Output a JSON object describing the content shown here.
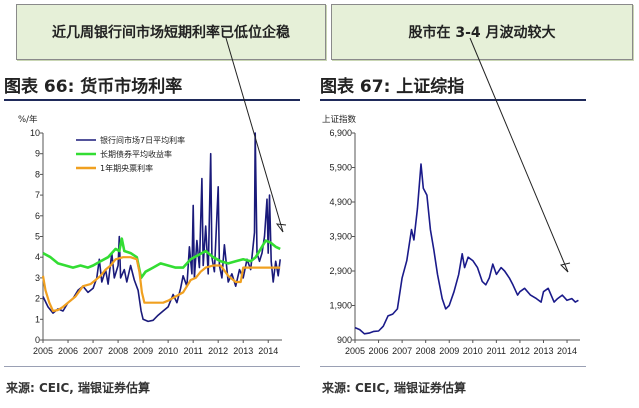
{
  "callouts": {
    "left": "近几周银行间市场短期利率已低位企稳",
    "right": "股市在 3-4 月波动较大"
  },
  "figures": {
    "left_title": "图表 66: 货币市场利率",
    "right_title": "图表 67: 上证综指",
    "left_source": "来源: CEIC, 瑞银证券估算",
    "right_source": "来源: CEIC, 瑞银证券估算"
  },
  "colors": {
    "series_7day": "#1a1a7a",
    "series_bond": "#33dd33",
    "series_bill": "#f0a020",
    "index_line": "#1a1a8a",
    "callout_bg": "#e6f0d8"
  },
  "chart_data": [
    {
      "type": "line",
      "unit_label": "%/年",
      "xlim": [
        2005,
        2014.55
      ],
      "ylim": [
        0,
        10
      ],
      "x_ticks": [
        "2005",
        "2006",
        "2007",
        "2008",
        "2009",
        "2010",
        "2011",
        "2012",
        "2013",
        "2014"
      ],
      "y_ticks": [
        0,
        1,
        2,
        3,
        4,
        5,
        6,
        7,
        8,
        9,
        10
      ],
      "legend_position": "top-right",
      "series": [
        {
          "name": "银行间市场7日平均利率",
          "color": "#1a1a7a",
          "points": [
            [
              2005.0,
              2.1
            ],
            [
              2005.2,
              1.6
            ],
            [
              2005.4,
              1.3
            ],
            [
              2005.6,
              1.5
            ],
            [
              2005.8,
              1.4
            ],
            [
              2006.0,
              1.8
            ],
            [
              2006.2,
              2.0
            ],
            [
              2006.4,
              2.4
            ],
            [
              2006.6,
              2.6
            ],
            [
              2006.8,
              2.3
            ],
            [
              2007.0,
              2.5
            ],
            [
              2007.15,
              3.0
            ],
            [
              2007.25,
              3.9
            ],
            [
              2007.35,
              2.8
            ],
            [
              2007.5,
              3.4
            ],
            [
              2007.6,
              2.7
            ],
            [
              2007.75,
              4.2
            ],
            [
              2007.85,
              3.0
            ],
            [
              2008.0,
              3.6
            ],
            [
              2008.05,
              5.0
            ],
            [
              2008.1,
              3.0
            ],
            [
              2008.25,
              3.4
            ],
            [
              2008.35,
              2.8
            ],
            [
              2008.5,
              3.6
            ],
            [
              2008.65,
              2.9
            ],
            [
              2008.8,
              2.4
            ],
            [
              2008.92,
              1.4
            ],
            [
              2009.0,
              1.0
            ],
            [
              2009.2,
              0.9
            ],
            [
              2009.4,
              0.95
            ],
            [
              2009.6,
              1.2
            ],
            [
              2009.8,
              1.4
            ],
            [
              2010.0,
              1.6
            ],
            [
              2010.2,
              2.2
            ],
            [
              2010.35,
              1.8
            ],
            [
              2010.5,
              2.5
            ],
            [
              2010.6,
              3.1
            ],
            [
              2010.75,
              2.6
            ],
            [
              2010.85,
              4.5
            ],
            [
              2010.95,
              3.2
            ],
            [
              2011.0,
              6.5
            ],
            [
              2011.05,
              3.0
            ],
            [
              2011.15,
              4.8
            ],
            [
              2011.25,
              3.5
            ],
            [
              2011.35,
              7.8
            ],
            [
              2011.4,
              3.6
            ],
            [
              2011.5,
              5.5
            ],
            [
              2011.6,
              3.2
            ],
            [
              2011.7,
              9.0
            ],
            [
              2011.75,
              4.0
            ],
            [
              2011.85,
              3.3
            ],
            [
              2012.0,
              7.4
            ],
            [
              2012.05,
              3.6
            ],
            [
              2012.15,
              3.0
            ],
            [
              2012.25,
              4.6
            ],
            [
              2012.4,
              2.8
            ],
            [
              2012.55,
              3.2
            ],
            [
              2012.7,
              2.6
            ],
            [
              2012.85,
              3.4
            ],
            [
              2013.0,
              3.0
            ],
            [
              2013.15,
              3.9
            ],
            [
              2013.3,
              3.4
            ],
            [
              2013.45,
              5.2
            ],
            [
              2013.48,
              10.0
            ],
            [
              2013.55,
              4.2
            ],
            [
              2013.65,
              3.8
            ],
            [
              2013.75,
              4.2
            ],
            [
              2013.85,
              5.0
            ],
            [
              2013.95,
              6.8
            ],
            [
              2014.0,
              4.2
            ],
            [
              2014.05,
              7.0
            ],
            [
              2014.12,
              3.8
            ],
            [
              2014.2,
              2.8
            ],
            [
              2014.3,
              3.8
            ],
            [
              2014.4,
              3.1
            ],
            [
              2014.48,
              3.9
            ]
          ]
        },
        {
          "name": "长期债券平均收益率",
          "color": "#33dd33",
          "points": [
            [
              2005.0,
              4.2
            ],
            [
              2005.3,
              4.0
            ],
            [
              2005.6,
              3.7
            ],
            [
              2005.9,
              3.6
            ],
            [
              2006.2,
              3.5
            ],
            [
              2006.5,
              3.6
            ],
            [
              2006.8,
              3.5
            ],
            [
              2007.0,
              3.6
            ],
            [
              2007.3,
              3.8
            ],
            [
              2007.6,
              4.0
            ],
            [
              2007.9,
              4.4
            ],
            [
              2008.05,
              4.3
            ],
            [
              2008.15,
              4.9
            ],
            [
              2008.25,
              4.3
            ],
            [
              2008.5,
              4.2
            ],
            [
              2008.75,
              4.0
            ],
            [
              2008.92,
              3.0
            ],
            [
              2009.1,
              3.3
            ],
            [
              2009.4,
              3.5
            ],
            [
              2009.7,
              3.7
            ],
            [
              2010.0,
              3.6
            ],
            [
              2010.3,
              3.5
            ],
            [
              2010.6,
              3.5
            ],
            [
              2010.9,
              3.9
            ],
            [
              2011.2,
              4.1
            ],
            [
              2011.5,
              4.3
            ],
            [
              2011.8,
              4.0
            ],
            [
              2012.1,
              3.8
            ],
            [
              2012.4,
              3.7
            ],
            [
              2012.7,
              3.8
            ],
            [
              2013.0,
              3.9
            ],
            [
              2013.3,
              3.8
            ],
            [
              2013.5,
              4.0
            ],
            [
              2013.7,
              4.4
            ],
            [
              2013.9,
              4.8
            ],
            [
              2014.1,
              4.7
            ],
            [
              2014.3,
              4.5
            ],
            [
              2014.48,
              4.4
            ]
          ]
        },
        {
          "name": "1年期央票利率",
          "color": "#f0a020",
          "points": [
            [
              2005.0,
              3.1
            ],
            [
              2005.1,
              2.4
            ],
            [
              2005.25,
              1.8
            ],
            [
              2005.4,
              1.4
            ],
            [
              2005.6,
              1.45
            ],
            [
              2005.8,
              1.6
            ],
            [
              2006.0,
              1.8
            ],
            [
              2006.3,
              2.1
            ],
            [
              2006.6,
              2.6
            ],
            [
              2006.9,
              2.7
            ],
            [
              2007.1,
              2.9
            ],
            [
              2007.3,
              3.1
            ],
            [
              2007.5,
              3.4
            ],
            [
              2007.7,
              3.6
            ],
            [
              2007.9,
              3.9
            ],
            [
              2008.2,
              4.0
            ],
            [
              2008.5,
              4.0
            ],
            [
              2008.75,
              3.9
            ],
            [
              2008.85,
              3.3
            ],
            [
              2008.95,
              2.3
            ],
            [
              2009.05,
              1.8
            ],
            [
              2009.5,
              1.8
            ],
            [
              2009.8,
              1.8
            ],
            [
              2010.0,
              1.9
            ],
            [
              2010.3,
              2.1
            ],
            [
              2010.6,
              2.3
            ],
            [
              2010.9,
              2.9
            ],
            [
              2011.1,
              3.0
            ],
            [
              2011.3,
              3.3
            ],
            [
              2011.5,
              3.5
            ],
            [
              2011.8,
              3.6
            ],
            [
              2012.1,
              3.6
            ],
            [
              2012.4,
              3.1
            ],
            [
              2012.7,
              2.8
            ],
            [
              2012.9,
              2.8
            ],
            [
              2013.0,
              3.5
            ],
            [
              2013.5,
              3.5
            ],
            [
              2014.0,
              3.5
            ],
            [
              2014.48,
              3.5
            ]
          ]
        }
      ]
    },
    {
      "type": "line",
      "unit_label": "上证指数",
      "xlim": [
        2005,
        2014.55
      ],
      "ylim": [
        900,
        6900
      ],
      "x_ticks": [
        "2005",
        "2006",
        "2007",
        "2008",
        "2009",
        "2010",
        "2011",
        "2012",
        "2013",
        "2014"
      ],
      "y_ticks": [
        900,
        1900,
        2900,
        3900,
        4900,
        5900,
        6900
      ],
      "y_tick_labels": [
        "900",
        "1,900",
        "2,900",
        "3,900",
        "4,900",
        "5,900",
        "6,900"
      ],
      "series": [
        {
          "name": "上证综指",
          "color": "#1a1a8a",
          "points": [
            [
              2005.0,
              1260
            ],
            [
              2005.2,
              1200
            ],
            [
              2005.4,
              1080
            ],
            [
              2005.6,
              1100
            ],
            [
              2005.8,
              1150
            ],
            [
              2006.0,
              1160
            ],
            [
              2006.2,
              1300
            ],
            [
              2006.4,
              1600
            ],
            [
              2006.6,
              1650
            ],
            [
              2006.8,
              1800
            ],
            [
              2007.0,
              2700
            ],
            [
              2007.2,
              3200
            ],
            [
              2007.4,
              4100
            ],
            [
              2007.5,
              3800
            ],
            [
              2007.65,
              4700
            ],
            [
              2007.8,
              6000
            ],
            [
              2007.9,
              5300
            ],
            [
              2008.05,
              5100
            ],
            [
              2008.2,
              4100
            ],
            [
              2008.35,
              3500
            ],
            [
              2008.5,
              2800
            ],
            [
              2008.7,
              2100
            ],
            [
              2008.85,
              1800
            ],
            [
              2009.0,
              1900
            ],
            [
              2009.2,
              2300
            ],
            [
              2009.4,
              2800
            ],
            [
              2009.55,
              3400
            ],
            [
              2009.65,
              3000
            ],
            [
              2009.8,
              3300
            ],
            [
              2010.0,
              3200
            ],
            [
              2010.2,
              3000
            ],
            [
              2010.4,
              2600
            ],
            [
              2010.55,
              2500
            ],
            [
              2010.7,
              2700
            ],
            [
              2010.85,
              3100
            ],
            [
              2011.0,
              2800
            ],
            [
              2011.2,
              3000
            ],
            [
              2011.35,
              2900
            ],
            [
              2011.55,
              2700
            ],
            [
              2011.7,
              2500
            ],
            [
              2011.9,
              2200
            ],
            [
              2012.0,
              2300
            ],
            [
              2012.2,
              2400
            ],
            [
              2012.45,
              2200
            ],
            [
              2012.7,
              2100
            ],
            [
              2012.9,
              2000
            ],
            [
              2013.0,
              2300
            ],
            [
              2013.2,
              2400
            ],
            [
              2013.45,
              2000
            ],
            [
              2013.6,
              2100
            ],
            [
              2013.8,
              2200
            ],
            [
              2014.0,
              2050
            ],
            [
              2014.2,
              2100
            ],
            [
              2014.35,
              2000
            ],
            [
              2014.48,
              2050
            ]
          ]
        }
      ]
    }
  ]
}
